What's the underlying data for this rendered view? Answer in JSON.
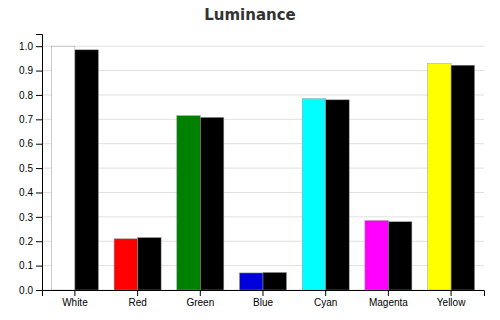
{
  "chart_data": {
    "type": "bar",
    "title": "Luminance",
    "categories": [
      "White",
      "Red",
      "Green",
      "Blue",
      "Cyan",
      "Magenta",
      "Yellow"
    ],
    "series": [
      {
        "colors": [
          "#ffffff",
          "#ff0000",
          "#008000",
          "#0000dd",
          "#00ffff",
          "#ff00ff",
          "#ffff00"
        ],
        "values": [
          1.0,
          0.21,
          0.715,
          0.07,
          0.785,
          0.285,
          0.928
        ]
      },
      {
        "color": "#000000",
        "values": [
          0.985,
          0.215,
          0.708,
          0.072,
          0.78,
          0.28,
          0.922
        ]
      }
    ],
    "ylim": [
      0.0,
      1.05
    ],
    "yticks": [
      {
        "value": 0.0,
        "label": "0.0"
      },
      0.1,
      0.2,
      0.3,
      0.4,
      0.5,
      0.6,
      0.7,
      0.8,
      0.9,
      {
        "value": 1.0,
        "label": "1.0"
      }
    ],
    "grid": true
  }
}
